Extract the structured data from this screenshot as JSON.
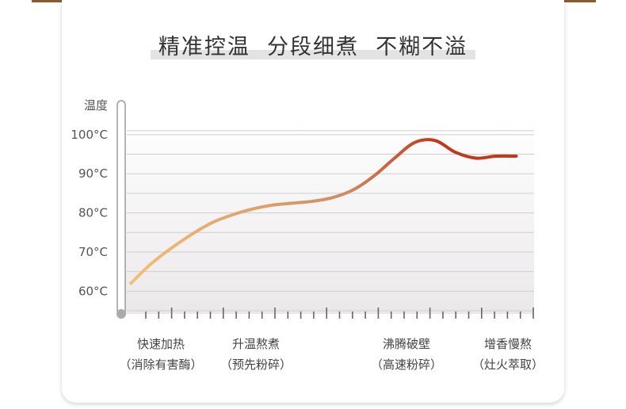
{
  "title": "精准控温  分段细煮  不糊不溢",
  "colors": {
    "frame": "#8a5a2e",
    "axis": "#8c8c8c",
    "grid": "#cfcfcf",
    "curve_start": "#f5bf78",
    "curve_mid": "#d08c63",
    "curve_end": "#c0391c"
  },
  "chart_data": {
    "type": "line",
    "ylabel": "温度",
    "yticks": [
      "100°C",
      "90°C",
      "80°C",
      "70°C",
      "60°C"
    ],
    "ytick_values": [
      100,
      90,
      80,
      70,
      60
    ],
    "ylim": [
      55,
      102
    ],
    "grid": true,
    "x": [
      0,
      5,
      10,
      15,
      20,
      25,
      30,
      35,
      40,
      45,
      50,
      55,
      60,
      65,
      70,
      75,
      80,
      85,
      90,
      95
    ],
    "y": [
      62,
      67,
      71,
      74.5,
      77.5,
      79.5,
      81,
      82,
      82.5,
      83,
      84,
      86,
      89.5,
      94,
      98,
      98.5,
      95.5,
      94,
      94.5,
      94.5
    ],
    "xlim": [
      -1,
      99
    ],
    "stages": [
      {
        "label": "快速加热",
        "sublabel": "（消除有害酶）"
      },
      {
        "label": "升温熬煮",
        "sublabel": "（预先粉碎）"
      },
      {
        "label": "沸腾破壁",
        "sublabel": "（高速粉碎）"
      },
      {
        "label": "增香慢熬",
        "sublabel": "（灶火萃取）"
      }
    ]
  }
}
